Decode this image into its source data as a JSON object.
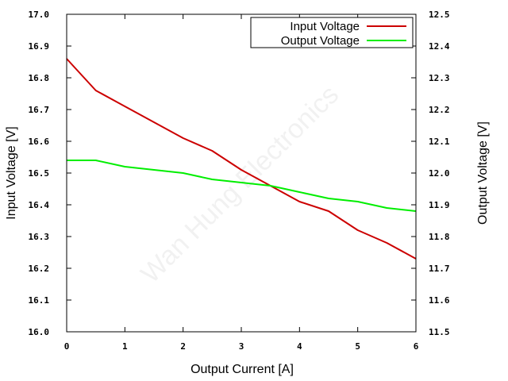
{
  "chart_data": {
    "type": "line",
    "xlabel": "Output Current [A]",
    "ylabel": "Input Voltage [V]",
    "y2label": "Output Voltage [V]",
    "xlim": [
      0,
      6
    ],
    "ylim": [
      16.0,
      17.0
    ],
    "y2lim": [
      11.5,
      12.5
    ],
    "x_ticks": [
      "0",
      "1",
      "2",
      "3",
      "4",
      "5",
      "6"
    ],
    "y_ticks": [
      "16.0",
      "16.1",
      "16.2",
      "16.3",
      "16.4",
      "16.5",
      "16.6",
      "16.7",
      "16.8",
      "16.9",
      "17.0"
    ],
    "y2_ticks": [
      "11.5",
      "11.6",
      "11.7",
      "11.8",
      "11.9",
      "12.0",
      "12.1",
      "12.2",
      "12.3",
      "12.4",
      "12.5"
    ],
    "grid": false,
    "legend_position": "top-right",
    "watermark": "Wan Hung Electronics",
    "series": [
      {
        "name": "Input Voltage",
        "axis": "left",
        "color": "#cc0000",
        "x": [
          0,
          0.1,
          0.5,
          1,
          1.5,
          2,
          2.5,
          3,
          3.5,
          4,
          4.5,
          5,
          5.5,
          6
        ],
        "y": [
          16.86,
          16.84,
          16.76,
          16.71,
          16.66,
          16.61,
          16.57,
          16.51,
          16.46,
          16.41,
          16.38,
          16.32,
          16.28,
          16.23
        ]
      },
      {
        "name": "Output Voltage",
        "axis": "right",
        "color": "#00ee00",
        "x": [
          0,
          0.5,
          1,
          1.5,
          2,
          2.5,
          3,
          3.5,
          4,
          4.5,
          5,
          5.5,
          6
        ],
        "y": [
          12.04,
          12.04,
          12.02,
          12.01,
          12.0,
          11.98,
          11.97,
          11.96,
          11.94,
          11.92,
          11.91,
          11.89,
          11.88
        ]
      }
    ]
  }
}
